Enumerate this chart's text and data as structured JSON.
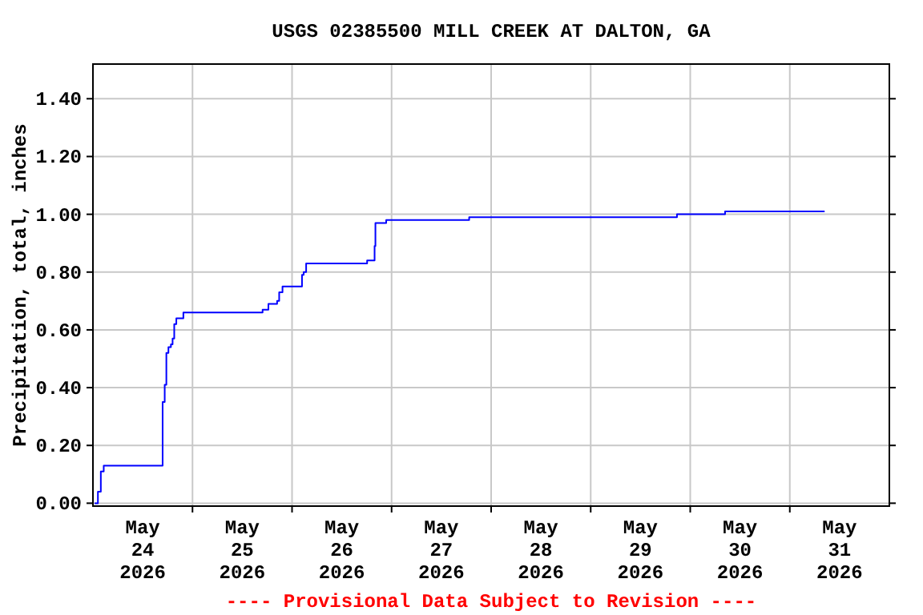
{
  "chart_data": {
    "type": "step",
    "title": "USGS 02385500 MILL CREEK AT DALTON, GA",
    "ylabel": "Precipitation, total, inches",
    "annotations": [
      "---- Provisional Data Subject to Revision ----"
    ],
    "xlim": [
      "2026-05-24T00:00",
      "2026-06-01T00:00"
    ],
    "xticks": [
      {
        "value": "2026-05-24T12:00",
        "label": "May\n24\n2026"
      },
      {
        "value": "2026-05-25T12:00",
        "label": "May\n25\n2026"
      },
      {
        "value": "2026-05-26T12:00",
        "label": "May\n26\n2026"
      },
      {
        "value": "2026-05-27T12:00",
        "label": "May\n27\n2026"
      },
      {
        "value": "2026-05-28T12:00",
        "label": "May\n28\n2026"
      },
      {
        "value": "2026-05-29T12:00",
        "label": "May\n29\n2026"
      },
      {
        "value": "2026-05-30T12:00",
        "label": "May\n30\n2026"
      },
      {
        "value": "2026-05-31T12:00",
        "label": "May\n31\n2026"
      },
      {
        "value": "2026-05-25T00:00",
        "label": null
      },
      {
        "value": "2026-05-26T00:00",
        "label": null
      },
      {
        "value": "2026-05-27T00:00",
        "label": null
      },
      {
        "value": "2026-05-28T00:00",
        "label": null
      },
      {
        "value": "2026-05-29T00:00",
        "label": null
      },
      {
        "value": "2026-05-30T00:00",
        "label": null
      },
      {
        "value": "2026-05-31T00:00",
        "label": null
      }
    ],
    "ylim": [
      -0.01,
      1.52
    ],
    "yticks": [
      {
        "value": 0,
        "label": "0.00"
      },
      {
        "value": 0.2,
        "label": "0.20"
      },
      {
        "value": 0.4,
        "label": "0.40"
      },
      {
        "value": 0.6,
        "label": "0.60"
      },
      {
        "value": 0.8,
        "label": "0.80"
      },
      {
        "value": 1,
        "label": "1.00"
      },
      {
        "value": 1.2,
        "label": "1.20"
      },
      {
        "value": 1.4,
        "label": "1.40"
      }
    ],
    "grid": true,
    "series": [
      {
        "color": "#0000ff",
        "x": [
          "2026-05-24T00:24",
          "2026-05-24T01:12",
          "2026-05-24T01:54",
          "2026-05-24T02:36",
          "2026-05-24T16:48",
          "2026-05-24T17:18",
          "2026-05-24T17:42",
          "2026-05-24T18:12",
          "2026-05-24T18:48",
          "2026-05-24T19:12",
          "2026-05-24T19:36",
          "2026-05-24T20:06",
          "2026-05-24T21:48",
          "2026-05-25T16:54",
          "2026-05-25T18:18",
          "2026-05-25T20:24",
          "2026-05-25T20:54",
          "2026-05-25T21:42",
          "2026-05-26T02:24",
          "2026-05-26T02:48",
          "2026-05-26T03:24",
          "2026-05-26T18:06",
          "2026-05-26T19:54",
          "2026-05-26T20:06",
          "2026-05-26T22:42",
          "2026-05-27T18:42",
          "2026-05-29T20:48",
          "2026-05-30T08:24",
          "2026-05-31T08:24"
        ],
        "values": [
          0,
          0.04,
          0.11,
          0.13,
          0.35,
          0.41,
          0.52,
          0.54,
          0.55,
          0.57,
          0.62,
          0.64,
          0.66,
          0.67,
          0.69,
          0.7,
          0.73,
          0.75,
          0.79,
          0.8,
          0.83,
          0.84,
          0.89,
          0.97,
          0.98,
          0.99,
          1.0,
          1.01,
          1.01
        ]
      }
    ]
  }
}
